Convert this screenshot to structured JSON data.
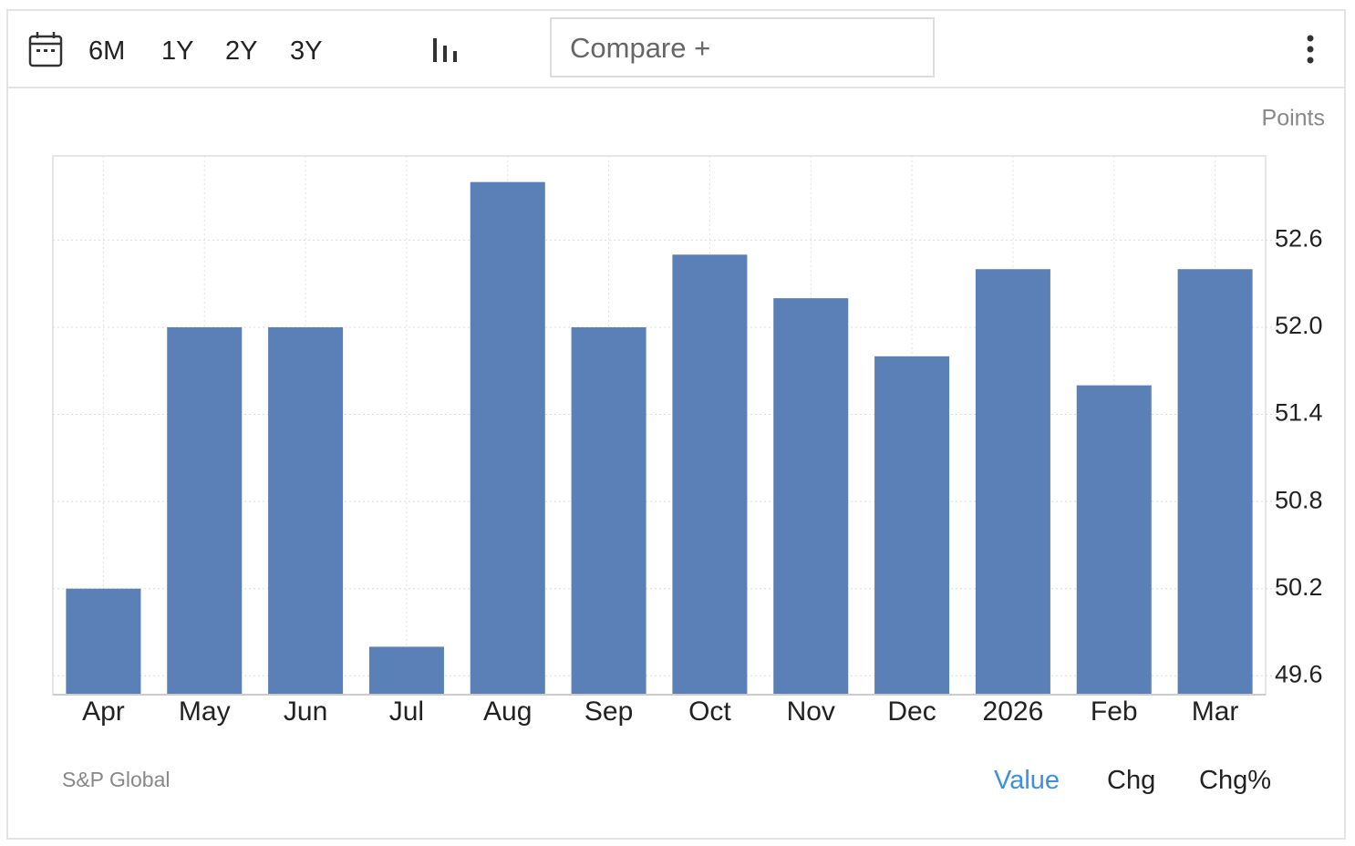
{
  "toolbar": {
    "ranges": [
      "6M",
      "1Y",
      "2Y",
      "3Y"
    ],
    "compare": "Compare +"
  },
  "chart_data": {
    "type": "bar",
    "y_axis_label": "Points",
    "categories": [
      "Apr",
      "May",
      "Jun",
      "Jul",
      "Aug",
      "Sep",
      "Oct",
      "Nov",
      "Dec",
      "2026",
      "Feb",
      "Mar"
    ],
    "values": [
      50.2,
      52.0,
      52.0,
      49.8,
      53.0,
      52.0,
      52.5,
      52.2,
      51.8,
      52.4,
      51.6,
      52.4
    ],
    "color": "#5b7fb7",
    "ylim": [
      49.47,
      53.18
    ],
    "yticks": [
      49.6,
      50.2,
      50.8,
      51.4,
      {
        "value": 52,
        "label": "52.0"
      },
      52.6
    ],
    "grid": true
  },
  "footer": {
    "source": "S&P Global",
    "modes": [
      "Value",
      "Chg",
      "Chg%"
    ]
  }
}
